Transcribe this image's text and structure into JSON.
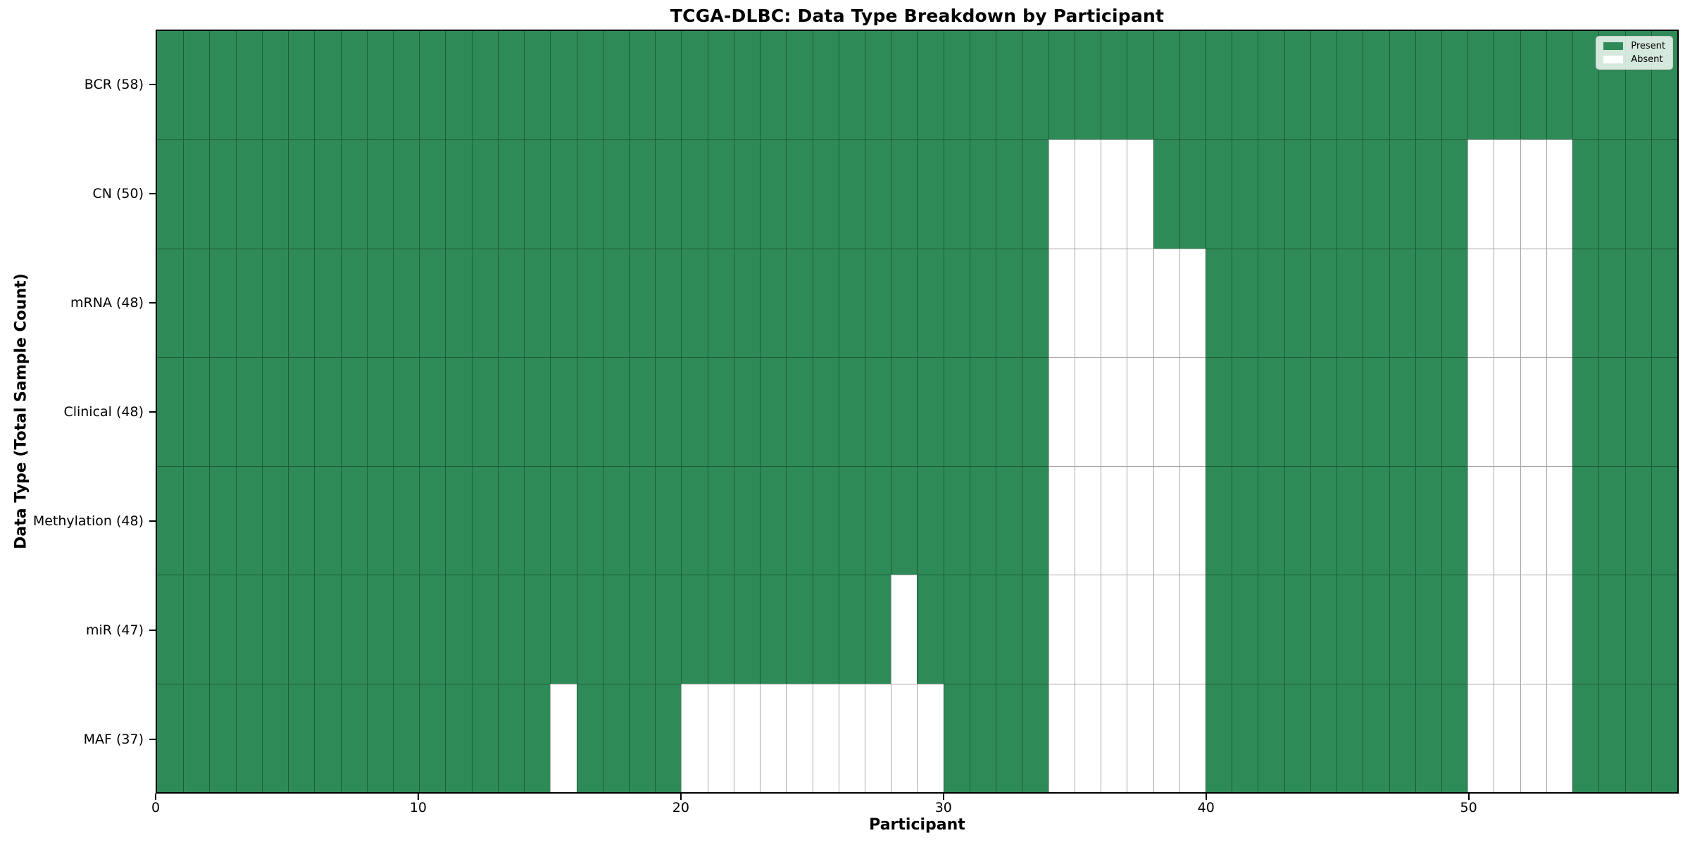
{
  "title": "TCGA-DLBC: Data Type Breakdown by Participant",
  "xlabel": "Participant",
  "ylabel": "Data Type (Total Sample Count)",
  "legend": {
    "present_label": "Present",
    "absent_label": "Absent"
  },
  "colors": {
    "present": "#2e8b57",
    "absent": "#ffffff"
  },
  "x_ticks": [
    0,
    10,
    20,
    30,
    40,
    50
  ],
  "chart_data": {
    "type": "heatmap",
    "title": "TCGA-DLBC: Data Type Breakdown by Participant",
    "xlabel": "Participant",
    "ylabel": "Data Type (Total Sample Count)",
    "x_range": [
      0,
      58
    ],
    "n_participants": 58,
    "grid": true,
    "legend_position": "upper right",
    "legend_entries": [
      "Present",
      "Absent"
    ],
    "rows": [
      {
        "label": "BCR (58)",
        "data_type": "BCR",
        "present_count": 58,
        "absent_participants": []
      },
      {
        "label": "CN (50)",
        "data_type": "CN",
        "present_count": 50,
        "absent_participants": [
          34,
          35,
          36,
          37,
          50,
          51,
          52,
          53
        ]
      },
      {
        "label": "mRNA (48)",
        "data_type": "mRNA",
        "present_count": 48,
        "absent_participants": [
          34,
          35,
          36,
          37,
          38,
          39,
          50,
          51,
          52,
          53
        ]
      },
      {
        "label": "Clinical (48)",
        "data_type": "Clinical",
        "present_count": 48,
        "absent_participants": [
          34,
          35,
          36,
          37,
          38,
          39,
          50,
          51,
          52,
          53
        ]
      },
      {
        "label": "Methylation (48)",
        "data_type": "Methylation",
        "present_count": 48,
        "absent_participants": [
          34,
          35,
          36,
          37,
          38,
          39,
          50,
          51,
          52,
          53
        ]
      },
      {
        "label": "miR (47)",
        "data_type": "miR",
        "present_count": 47,
        "absent_participants": [
          28,
          34,
          35,
          36,
          37,
          38,
          39,
          50,
          51,
          52,
          53
        ]
      },
      {
        "label": "MAF (37)",
        "data_type": "MAF",
        "present_count": 37,
        "absent_participants": [
          15,
          20,
          21,
          22,
          23,
          24,
          25,
          26,
          27,
          28,
          29,
          34,
          35,
          36,
          37,
          38,
          39,
          50,
          51,
          52,
          53
        ]
      }
    ]
  }
}
